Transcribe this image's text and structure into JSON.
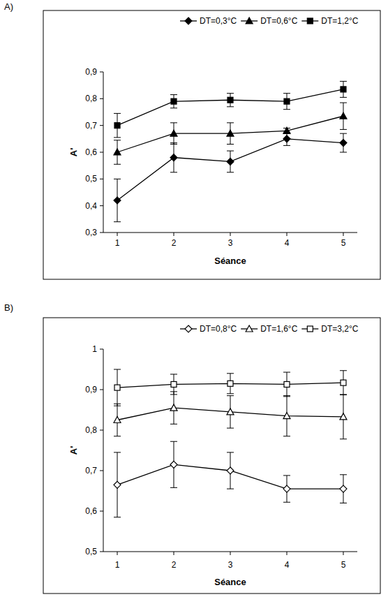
{
  "chart_data": [
    {
      "type": "line",
      "title": "A)",
      "x_label": "Séance",
      "y_label": "A'",
      "categories": [
        "1",
        "2",
        "3",
        "4",
        "5"
      ],
      "ylim": [
        0.3,
        0.9
      ],
      "yticks": [
        {
          "value": 0.3,
          "label": "0,3"
        },
        {
          "value": 0.4,
          "label": "0,4"
        },
        {
          "value": 0.5,
          "label": "0,5"
        },
        {
          "value": 0.6,
          "label": "0,6"
        },
        {
          "value": 0.7,
          "label": "0,7"
        },
        {
          "value": 0.8,
          "label": "0,8"
        },
        {
          "value": 0.9,
          "label": "0,9"
        }
      ],
      "grid": false,
      "legend": "top",
      "series": [
        {
          "name": "DT=0,3°C",
          "color": "#000000",
          "marker": "diamond",
          "values": [
            0.42,
            0.58,
            0.565,
            0.65,
            0.635
          ],
          "errors": [
            0.08,
            0.055,
            0.04,
            0.025,
            0.035
          ]
        },
        {
          "name": "DT=0,6°C",
          "color": "#000000",
          "marker": "triangle",
          "values": [
            0.6,
            0.67,
            0.67,
            0.68,
            0.735
          ],
          "errors": [
            0.045,
            0.04,
            0.04,
            0.01,
            0.05
          ]
        },
        {
          "name": "DT=1,2°C",
          "color": "#000000",
          "marker": "square",
          "values": [
            0.7,
            0.79,
            0.795,
            0.79,
            0.835
          ],
          "errors": [
            0.045,
            0.025,
            0.025,
            0.03,
            0.03
          ]
        }
      ]
    },
    {
      "type": "line",
      "title": "B)",
      "x_label": "Séance",
      "y_label": "A'",
      "categories": [
        "1",
        "2",
        "3",
        "4",
        "5"
      ],
      "ylim": [
        0.5,
        1
      ],
      "yticks": [
        {
          "value": 0.5,
          "label": "0,5"
        },
        {
          "value": 0.6,
          "label": "0,6"
        },
        {
          "value": 0.7,
          "label": "0,7"
        },
        {
          "value": 0.8,
          "label": "0,8"
        },
        {
          "value": 0.9,
          "label": "0,9"
        },
        1
      ],
      "grid": false,
      "legend": "top",
      "series": [
        {
          "name": "DT=0,8°C",
          "color": "#000000",
          "marker": "diamond-open",
          "values": [
            0.665,
            0.715,
            0.7,
            0.655,
            0.655
          ],
          "errors": [
            0.08,
            0.057,
            0.045,
            0.033,
            0.035
          ]
        },
        {
          "name": "DT=1,6°C",
          "color": "#000000",
          "marker": "triangle-open",
          "values": [
            0.825,
            0.855,
            0.845,
            0.835,
            0.833
          ],
          "errors": [
            0.04,
            0.04,
            0.04,
            0.05,
            0.055
          ]
        },
        {
          "name": "DT=3,2°C",
          "color": "#000000",
          "marker": "square-open",
          "values": [
            0.905,
            0.913,
            0.915,
            0.913,
            0.917
          ],
          "errors": [
            0.045,
            0.025,
            0.025,
            0.03,
            0.03
          ]
        }
      ]
    }
  ]
}
